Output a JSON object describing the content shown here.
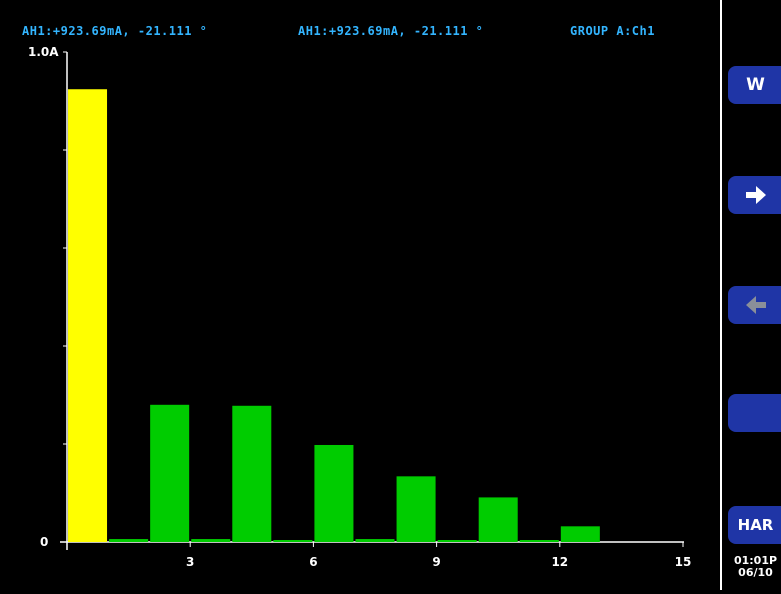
{
  "header": {
    "readout_1": "AH1:+923.69mA, -21.111 °",
    "readout_2": "AH1:+923.69mA, -21.111 °",
    "group": "GROUP A:Ch1"
  },
  "softkeys": {
    "w_label": "W",
    "next_icon": "arrow-right-icon",
    "prev_icon": "arrow-left-icon",
    "blank_label": "",
    "har_label": "HAR"
  },
  "clock": {
    "time": "01:01P",
    "date": "06/10"
  },
  "colors": {
    "fundamental": "#ffff00",
    "harmonic": "#00cc00",
    "header_text": "#33b5ff",
    "softkey": "#1f35a6"
  },
  "chart_data": {
    "type": "bar",
    "y_top_label": "1.0A",
    "y_zero_label": "0",
    "ylim": [
      0,
      1.0
    ],
    "xlim": [
      0,
      15
    ],
    "x_tick_labels": [
      "3",
      "6",
      "9",
      "12",
      "15"
    ],
    "x_ticks": [
      3,
      6,
      9,
      12,
      15
    ],
    "bars": [
      {
        "order": 1,
        "value": 0.924,
        "highlight": true
      },
      {
        "order": 2,
        "value": 0.006
      },
      {
        "order": 3,
        "value": 0.28
      },
      {
        "order": 4,
        "value": 0.006
      },
      {
        "order": 5,
        "value": 0.278
      },
      {
        "order": 6,
        "value": 0.004
      },
      {
        "order": 7,
        "value": 0.198
      },
      {
        "order": 8,
        "value": 0.006
      },
      {
        "order": 9,
        "value": 0.134
      },
      {
        "order": 10,
        "value": 0.004
      },
      {
        "order": 11,
        "value": 0.091
      },
      {
        "order": 12,
        "value": 0.004
      },
      {
        "order": 13,
        "value": 0.032
      }
    ]
  }
}
